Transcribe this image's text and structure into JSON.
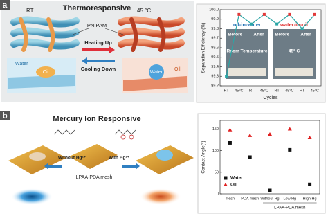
{
  "panel_a": {
    "label": "a",
    "title": "Thermoresponsive",
    "state_left": "RT",
    "state_right": "45 °C",
    "material": "PNIPAM",
    "heating": "Heating Up",
    "cooling": "Cooling Down",
    "left_water": "Water",
    "left_oil": "Oil",
    "right_water": "Water",
    "right_oil": "Oil"
  },
  "panel_b": {
    "label": "b",
    "title": "Mercury Ion Responsive",
    "without": "Without Hg²⁺",
    "with": "With Hg²⁺",
    "mesh": "LPAA-PDA mesh"
  },
  "chart_data": [
    {
      "type": "line",
      "y_label": "Separation Efficiency (%)",
      "x_label": "Cycles",
      "categories": [
        "RT",
        "45°C",
        "RT",
        "45°C",
        "RT",
        "45°C",
        "RT",
        "45°C"
      ],
      "values": [
        99.3,
        99.95,
        99.85,
        99.95,
        99.85,
        99.95,
        99.8,
        99.95
      ],
      "color": "#2ba6a6",
      "point_colors": [
        "#2ba6a6",
        "#e23a3a",
        "#2ba6a6",
        "#e23a3a",
        "#2ba6a6",
        "#e23a3a",
        "#2ba6a6",
        "#e23a3a"
      ],
      "ylim": [
        99.2,
        100.0
      ],
      "yticks": [
        99.2,
        99.3,
        99.4,
        99.5,
        99.6,
        99.7,
        99.8,
        99.9,
        {
          "value": 100.0,
          "label": "100.0"
        }
      ],
      "annotations": [
        "oil-in-water",
        "water-in-oil",
        "Before",
        "After",
        "Room Temperature",
        "Before",
        "After",
        "45° C"
      ]
    },
    {
      "type": "scatter",
      "y_label": "Contact Angle(°)",
      "categories": [
        "mesh",
        "PDA mesh",
        "Without Hg",
        "Low Hg",
        "High Hg"
      ],
      "group_label": "LPAA-PDA mesh",
      "series": [
        {
          "name": "Water",
          "color": "#111111",
          "marker": "square",
          "values": [
            118,
            85,
            8,
            102,
            22
          ]
        },
        {
          "name": "Oil",
          "color": "#e02020",
          "marker": "triangle",
          "values": [
            148,
            135,
            138,
            150,
            130
          ]
        }
      ],
      "ylim": [
        0,
        170
      ],
      "yticks": [
        0,
        50,
        100,
        150
      ]
    }
  ]
}
